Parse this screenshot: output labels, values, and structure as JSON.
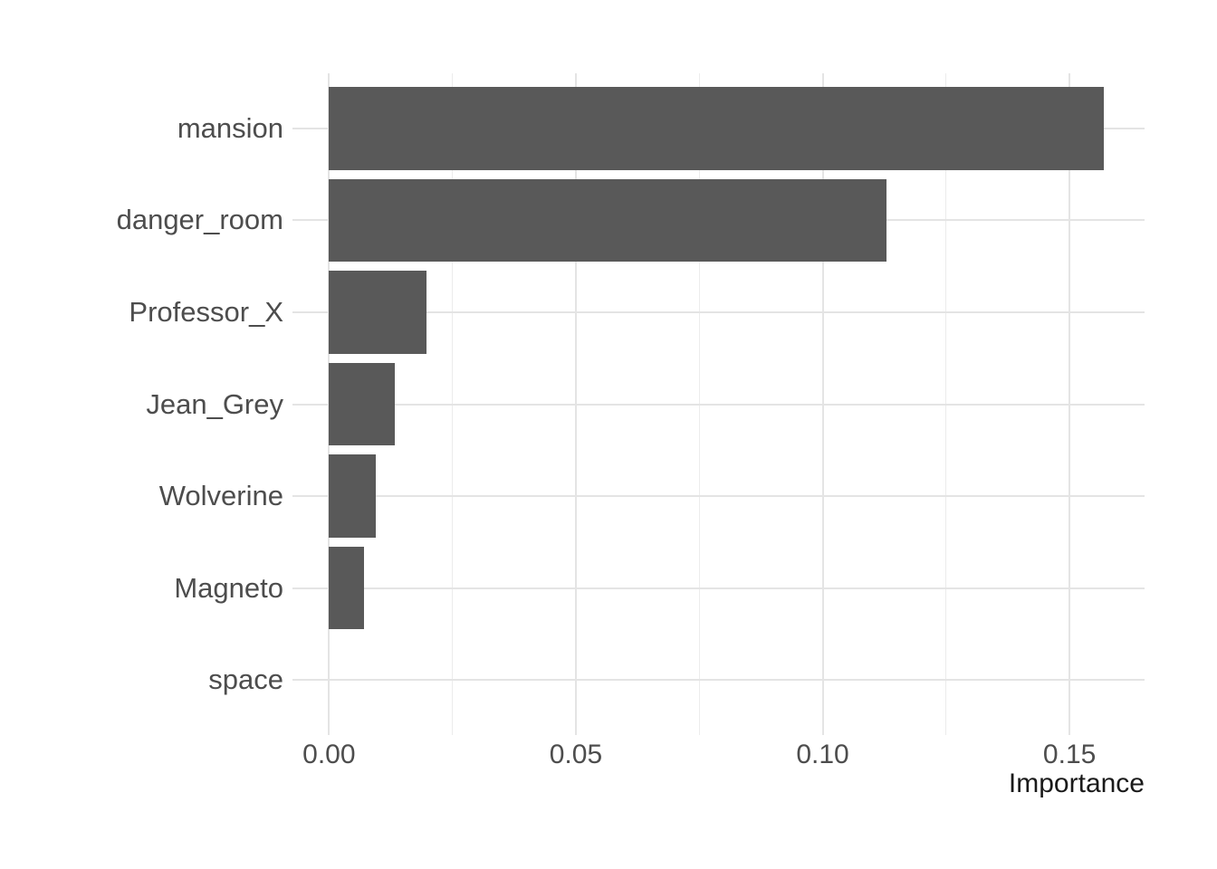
{
  "chart_data": {
    "type": "bar",
    "orientation": "horizontal",
    "title": "",
    "xlabel": "Importance",
    "ylabel": "",
    "categories": [
      "mansion",
      "danger_room",
      "Professor_X",
      "Jean_Grey",
      "Wolverine",
      "Magneto",
      "space"
    ],
    "values": [
      0.157,
      0.113,
      0.0197,
      0.0134,
      0.0095,
      0.0071,
      0
    ],
    "x_ticks": [
      {
        "value": 0.0,
        "label": "0.00"
      },
      {
        "value": 0.05,
        "label": "0.05"
      },
      {
        "value": 0.1,
        "label": "0.10"
      },
      {
        "value": 0.15,
        "label": "0.15"
      }
    ],
    "x_minor_gridlines": [
      0.025,
      0.075,
      0.125
    ],
    "xlim": [
      -0.0074,
      0.1652
    ],
    "grid": "vertical major+minor, horizontal major at each category; no axis lines, no ticks (minimal theme)",
    "legend_position": "none",
    "colors": {
      "bar": "#595959",
      "grid_major": "#E4E4E4",
      "grid_minor": "#ECECEC",
      "axis_text": "#4D4D4D",
      "axis_title": "#1A1A1A",
      "background": "#FFFFFF"
    }
  }
}
